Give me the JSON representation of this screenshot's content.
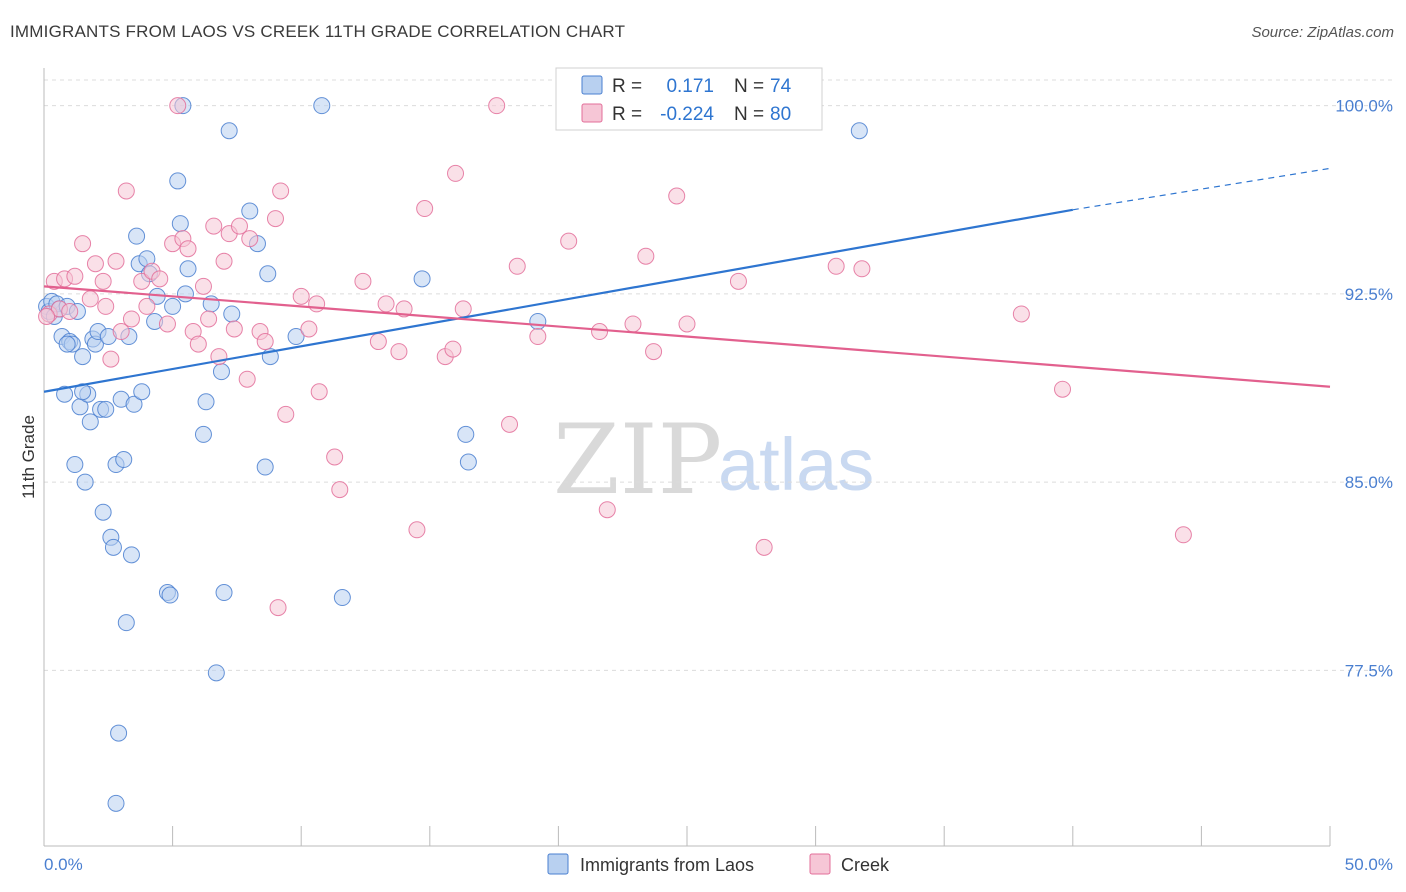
{
  "title": "IMMIGRANTS FROM LAOS VS CREEK 11TH GRADE CORRELATION CHART",
  "source": "Source: ZipAtlas.com",
  "watermark": {
    "zip": "ZIP",
    "atlas": "atlas"
  },
  "colors": {
    "blue": "#4a7fd0",
    "blue_fill": "#b8d0f0",
    "blue_line": "#2e75d0",
    "pink": "#e36f9a",
    "pink_fill": "#f6c6d6",
    "pink_line": "#e2608e",
    "grid": "#dcdcdc"
  },
  "legend": {
    "series1": {
      "r_label": "R =",
      "r_value": "0.171",
      "n_label": "N =",
      "n_value": "74"
    },
    "series2": {
      "r_label": "R =",
      "r_value": "-0.224",
      "n_label": "N =",
      "n_value": "80"
    }
  },
  "chart_data": {
    "type": "scatter",
    "title": "IMMIGRANTS FROM LAOS VS CREEK 11TH GRADE CORRELATION CHART",
    "xlabel": "",
    "ylabel": "11th Grade",
    "xlim": [
      0,
      50
    ],
    "ylim": [
      70.5,
      101.5
    ],
    "x_tick_labels": [
      "0.0%",
      "50.0%"
    ],
    "y_ticks": [
      77.5,
      85.0,
      92.5,
      100.0
    ],
    "y_tick_labels": [
      "77.5%",
      "85.0%",
      "92.5%",
      "100.0%"
    ],
    "grid": "horizontal dashed",
    "legend_position": "top-center",
    "series": [
      {
        "name": "Immigrants from Laos",
        "color": "#4a7fd0",
        "trend": {
          "x0": 0,
          "y0": 88.6,
          "x1": 40,
          "y1": 95.85,
          "dashed_to_x": 50,
          "dashed_to_y": 97.5
        },
        "points": [
          [
            0.1,
            92.0
          ],
          [
            0.2,
            91.8
          ],
          [
            0.3,
            92.2
          ],
          [
            0.4,
            91.6
          ],
          [
            0.5,
            92.1
          ],
          [
            0.6,
            91.9
          ],
          [
            0.7,
            90.8
          ],
          [
            0.8,
            88.5
          ],
          [
            0.9,
            92.0
          ],
          [
            1.0,
            90.6
          ],
          [
            1.1,
            90.5
          ],
          [
            1.2,
            85.7
          ],
          [
            1.3,
            91.8
          ],
          [
            1.4,
            88.0
          ],
          [
            1.5,
            90.0
          ],
          [
            1.6,
            85.0
          ],
          [
            1.7,
            88.5
          ],
          [
            1.8,
            87.4
          ],
          [
            1.9,
            90.7
          ],
          [
            2.0,
            90.5
          ],
          [
            2.1,
            91.0
          ],
          [
            2.2,
            87.9
          ],
          [
            2.3,
            83.8
          ],
          [
            2.4,
            87.9
          ],
          [
            2.5,
            90.8
          ],
          [
            2.6,
            82.8
          ],
          [
            2.7,
            82.4
          ],
          [
            2.8,
            85.7
          ],
          [
            2.9,
            75.0
          ],
          [
            3.0,
            88.3
          ],
          [
            3.1,
            85.9
          ],
          [
            3.2,
            79.4
          ],
          [
            3.3,
            90.8
          ],
          [
            3.4,
            82.1
          ],
          [
            3.5,
            88.1
          ],
          [
            3.6,
            94.8
          ],
          [
            3.7,
            93.7
          ],
          [
            3.8,
            88.6
          ],
          [
            4.0,
            93.9
          ],
          [
            4.1,
            93.3
          ],
          [
            4.3,
            91.4
          ],
          [
            4.4,
            92.4
          ],
          [
            4.8,
            80.6
          ],
          [
            5.0,
            92.0
          ],
          [
            5.2,
            97.0
          ],
          [
            5.3,
            95.3
          ],
          [
            5.4,
            100.0
          ],
          [
            5.5,
            92.5
          ],
          [
            5.6,
            93.5
          ],
          [
            6.2,
            86.9
          ],
          [
            6.3,
            88.2
          ],
          [
            6.5,
            92.1
          ],
          [
            6.7,
            77.4
          ],
          [
            6.9,
            89.4
          ],
          [
            7.0,
            80.6
          ],
          [
            7.2,
            99.0
          ],
          [
            7.3,
            91.7
          ],
          [
            8.0,
            95.8
          ],
          [
            8.3,
            94.5
          ],
          [
            8.6,
            85.6
          ],
          [
            8.7,
            93.3
          ],
          [
            8.8,
            90.0
          ],
          [
            9.8,
            90.8
          ],
          [
            10.8,
            100.0
          ],
          [
            11.6,
            80.4
          ],
          [
            14.7,
            93.1
          ],
          [
            16.4,
            86.9
          ],
          [
            16.5,
            85.8
          ],
          [
            19.2,
            91.4
          ],
          [
            31.7,
            99.0
          ],
          [
            4.9,
            80.5
          ],
          [
            1.5,
            88.6
          ],
          [
            2.8,
            72.2
          ],
          [
            0.9,
            90.5
          ]
        ]
      },
      {
        "name": "Creek",
        "color": "#e36f9a",
        "trend": {
          "x0": 0,
          "y0": 92.8,
          "x1": 50,
          "y1": 88.8
        },
        "points": [
          [
            0.2,
            91.7
          ],
          [
            0.4,
            93.0
          ],
          [
            0.6,
            91.9
          ],
          [
            0.8,
            93.1
          ],
          [
            1.0,
            91.8
          ],
          [
            1.2,
            93.2
          ],
          [
            1.5,
            94.5
          ],
          [
            1.8,
            92.3
          ],
          [
            2.0,
            93.7
          ],
          [
            2.3,
            93.0
          ],
          [
            2.4,
            92.0
          ],
          [
            2.6,
            89.9
          ],
          [
            2.8,
            93.8
          ],
          [
            3.0,
            91.0
          ],
          [
            3.2,
            96.6
          ],
          [
            3.4,
            91.5
          ],
          [
            3.8,
            93.0
          ],
          [
            4.0,
            92.0
          ],
          [
            4.2,
            93.4
          ],
          [
            4.5,
            93.1
          ],
          [
            4.8,
            91.3
          ],
          [
            5.0,
            94.5
          ],
          [
            5.2,
            100.0
          ],
          [
            5.4,
            94.7
          ],
          [
            5.6,
            94.3
          ],
          [
            5.8,
            91.0
          ],
          [
            6.0,
            90.5
          ],
          [
            6.2,
            92.8
          ],
          [
            6.4,
            91.5
          ],
          [
            6.6,
            95.2
          ],
          [
            6.8,
            90.0
          ],
          [
            7.0,
            93.8
          ],
          [
            7.2,
            94.9
          ],
          [
            7.4,
            91.1
          ],
          [
            7.6,
            95.2
          ],
          [
            7.9,
            89.1
          ],
          [
            8.0,
            94.7
          ],
          [
            8.4,
            91.0
          ],
          [
            8.6,
            90.6
          ],
          [
            9.0,
            95.5
          ],
          [
            9.2,
            96.6
          ],
          [
            9.4,
            87.7
          ],
          [
            10.0,
            92.4
          ],
          [
            10.3,
            91.1
          ],
          [
            10.6,
            92.1
          ],
          [
            10.7,
            88.6
          ],
          [
            11.3,
            86.0
          ],
          [
            11.5,
            84.7
          ],
          [
            12.4,
            93.0
          ],
          [
            13.0,
            90.6
          ],
          [
            13.3,
            92.1
          ],
          [
            13.8,
            90.2
          ],
          [
            14.0,
            91.9
          ],
          [
            14.5,
            83.1
          ],
          [
            14.8,
            95.9
          ],
          [
            15.6,
            90.0
          ],
          [
            15.9,
            90.3
          ],
          [
            16.0,
            97.3
          ],
          [
            16.3,
            91.9
          ],
          [
            17.6,
            100.0
          ],
          [
            18.1,
            87.3
          ],
          [
            18.4,
            93.6
          ],
          [
            19.2,
            90.8
          ],
          [
            20.4,
            94.6
          ],
          [
            21.6,
            91.0
          ],
          [
            21.9,
            83.9
          ],
          [
            22.9,
            91.3
          ],
          [
            23.4,
            94.0
          ],
          [
            23.7,
            90.2
          ],
          [
            24.6,
            96.4
          ],
          [
            25.0,
            91.3
          ],
          [
            27.0,
            93.0
          ],
          [
            28.0,
            82.4
          ],
          [
            30.8,
            93.6
          ],
          [
            31.8,
            93.5
          ],
          [
            38.0,
            91.7
          ],
          [
            39.6,
            88.7
          ],
          [
            44.3,
            82.9
          ],
          [
            0.1,
            91.6
          ],
          [
            9.1,
            80.0
          ]
        ]
      }
    ]
  },
  "bottom_legend": {
    "series1": "Immigrants from Laos",
    "series2": "Creek"
  }
}
